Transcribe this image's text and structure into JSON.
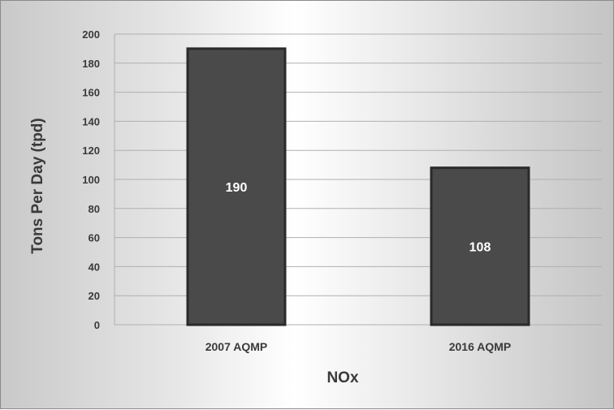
{
  "chart_data": {
    "type": "bar",
    "categories": [
      "2007 AQMP",
      "2016 AQMP"
    ],
    "values": [
      190,
      108
    ],
    "data_labels": [
      "190",
      "108"
    ],
    "title": "",
    "xlabel": "NOx",
    "ylabel": "Tons Per Day (tpd)",
    "ylim": [
      0,
      200
    ],
    "yticks": [
      0,
      20,
      40,
      60,
      80,
      100,
      120,
      140,
      160,
      180,
      200
    ],
    "grid": true,
    "legend": "none",
    "colors": {
      "bar": "#4a4a4a",
      "bar_edge": "#2a2a2a",
      "grid": "#b0b0b0",
      "text": "#3a3a3a",
      "data_label": "#ffffff"
    }
  }
}
